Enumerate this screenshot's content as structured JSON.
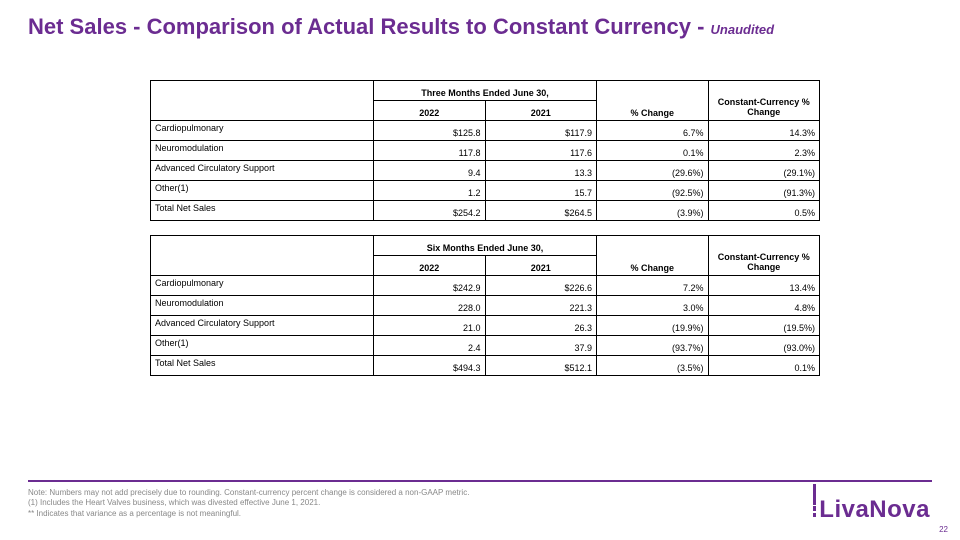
{
  "title_main": "Net Sales - Comparison of Actual Results to Constant Currency - ",
  "title_suffix": "Unaudited",
  "colors": {
    "brand": "#6b2c91",
    "text_footnote": "#888888",
    "border": "#000000",
    "background": "#ffffff"
  },
  "tables": [
    {
      "period_header": "Three Months Ended June 30,",
      "col_year_a": "2022",
      "col_year_b": "2021",
      "col_change": "% Change",
      "col_cc": "Constant-Currency % Change",
      "rows": [
        {
          "label": "Cardiopulmonary",
          "a": "$125.8",
          "b": "$117.9",
          "chg": "6.7%",
          "cc": "14.3%"
        },
        {
          "label": "Neuromodulation",
          "a": "117.8",
          "b": "117.6",
          "chg": "0.1%",
          "cc": "2.3%"
        },
        {
          "label": "Advanced Circulatory Support",
          "a": "9.4",
          "b": "13.3",
          "chg": "(29.6%)",
          "cc": "(29.1%)"
        },
        {
          "label": "Other(1)",
          "a": "1.2",
          "b": "15.7",
          "chg": "(92.5%)",
          "cc": "(91.3%)"
        },
        {
          "label": "Total Net Sales",
          "a": "$254.2",
          "b": "$264.5",
          "chg": "(3.9%)",
          "cc": "0.5%"
        }
      ]
    },
    {
      "period_header": "Six Months Ended June 30,",
      "col_year_a": "2022",
      "col_year_b": "2021",
      "col_change": "% Change",
      "col_cc": "Constant-Currency % Change",
      "rows": [
        {
          "label": "Cardiopulmonary",
          "a": "$242.9",
          "b": "$226.6",
          "chg": "7.2%",
          "cc": "13.4%"
        },
        {
          "label": "Neuromodulation",
          "a": "228.0",
          "b": "221.3",
          "chg": "3.0%",
          "cc": "4.8%"
        },
        {
          "label": "Advanced Circulatory Support",
          "a": "21.0",
          "b": "26.3",
          "chg": "(19.9%)",
          "cc": "(19.5%)"
        },
        {
          "label": "Other(1)",
          "a": "2.4",
          "b": "37.9",
          "chg": "(93.7%)",
          "cc": "(93.0%)"
        },
        {
          "label": "Total Net Sales",
          "a": "$494.3",
          "b": "$512.1",
          "chg": "(3.5%)",
          "cc": "0.1%"
        }
      ]
    }
  ],
  "footnotes": [
    "Note: Numbers may not add precisely due to rounding. Constant-currency percent change is considered a non-GAAP metric.",
    "(1) Includes the Heart Valves business, which was divested effective June 1, 2021.",
    "** Indicates that variance as a percentage is not meaningful."
  ],
  "logo_text": "LivaNova",
  "page_number": "22"
}
